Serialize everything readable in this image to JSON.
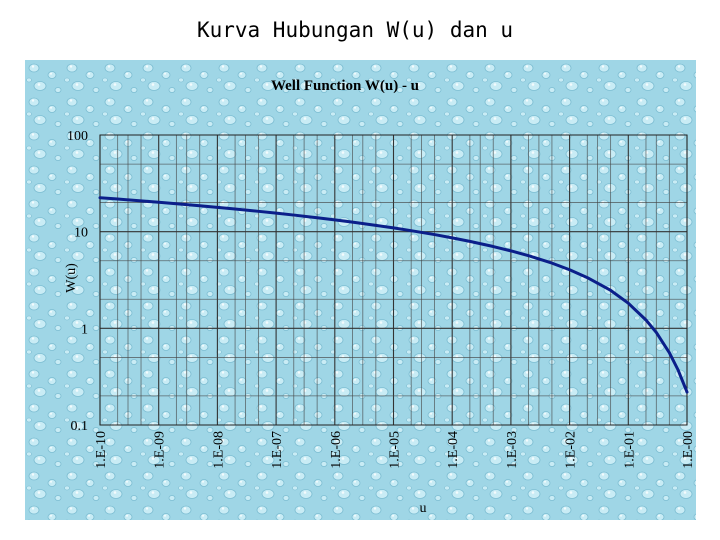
{
  "slide": {
    "title": "Kurva Hubungan W(u) dan u"
  },
  "chart_data": {
    "type": "line",
    "title": "Well Function  W(u) - u",
    "xlabel": "u",
    "ylabel": "W(u)",
    "x_scale": "log",
    "y_scale": "log",
    "xlim": [
      1e-10,
      1
    ],
    "ylim": [
      0.1,
      100
    ],
    "x_ticks": [
      "1.E-10",
      "1.E-09",
      "1.E-08",
      "1.E-07",
      "1.E-06",
      "1.E-05",
      "1.E-04",
      "1.E-03",
      "1.E-02",
      "1.E-01",
      "1.E-00"
    ],
    "y_ticks": [
      "0.1",
      "1",
      "10",
      "100"
    ],
    "grid": true,
    "legend": "none",
    "series_color": "#0b1f8a",
    "series": [
      {
        "x": [
          1e-10,
          2e-10,
          5e-10,
          1e-09,
          2e-09,
          5e-09,
          1e-08,
          2e-08,
          5e-08,
          1e-07,
          2e-07,
          5e-07,
          1e-06,
          2e-06,
          5e-06,
          1e-05,
          2e-05,
          5e-05,
          0.0001,
          0.0002,
          0.0005,
          0.001,
          0.002,
          0.005,
          0.01,
          0.02,
          0.05,
          0.1,
          0.2,
          0.3,
          0.5,
          0.7,
          1.0
        ],
        "y": [
          22.45,
          21.76,
          20.84,
          20.15,
          19.45,
          18.54,
          17.84,
          17.15,
          16.24,
          15.54,
          14.85,
          13.93,
          13.24,
          12.55,
          11.63,
          10.94,
          10.24,
          9.33,
          8.63,
          7.94,
          7.02,
          6.33,
          5.64,
          4.73,
          4.04,
          3.35,
          2.47,
          1.82,
          1.22,
          0.906,
          0.56,
          0.374,
          0.219
        ]
      }
    ]
  }
}
